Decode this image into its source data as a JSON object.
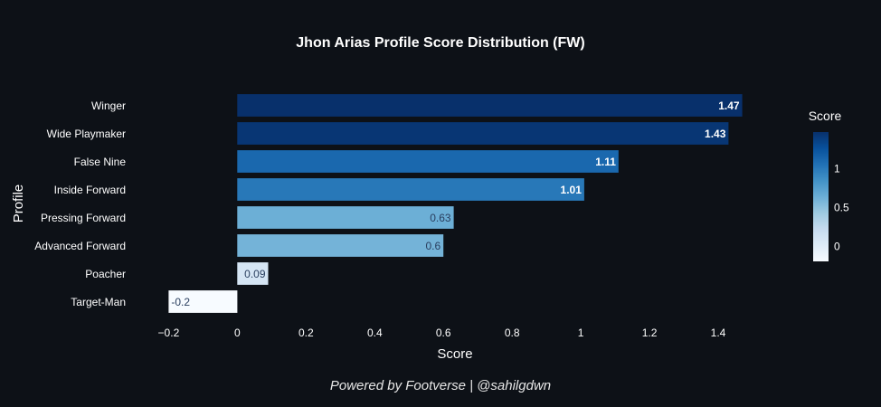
{
  "footer": "Powered by Footverse | @sahilgdwn",
  "colors": {
    "background": "#0d1117",
    "text": "#ffffff",
    "dark_label": "#2a3f5f",
    "colorscale": [
      "#f7fbff",
      "#deebf7",
      "#c6dbef",
      "#9ecae1",
      "#6baed6",
      "#4292c6",
      "#2171b5",
      "#08519c",
      "#08306b"
    ]
  },
  "chart_data": {
    "type": "bar",
    "orientation": "horizontal",
    "title": "Jhon Arias Profile Score Distribution (FW)",
    "xlabel": "Score",
    "ylabel": "Profile",
    "categories": [
      "Winger",
      "Wide Playmaker",
      "False Nine",
      "Inside Forward",
      "Pressing Forward",
      "Advanced Forward",
      "Poacher",
      "Target-Man"
    ],
    "values": [
      1.47,
      1.43,
      1.11,
      1.01,
      0.63,
      0.6,
      0.09,
      -0.2
    ],
    "data_labels": [
      "1.47",
      "1.43",
      "1.11",
      "1.01",
      "0.63",
      "0.6",
      "0.09",
      "-0.2"
    ],
    "xlim": [
      -0.23,
      1.5
    ],
    "xticks": [
      -0.2,
      0,
      0.2,
      0.4,
      0.6,
      0.8,
      1,
      1.2,
      1.4
    ],
    "xtick_labels": [
      "−0.2",
      "0",
      "0.2",
      "0.4",
      "0.6",
      "0.8",
      "1",
      "1.2",
      "1.4"
    ],
    "grid": false,
    "colorbar": {
      "title": "Score",
      "range": [
        -0.2,
        1.47
      ],
      "ticks": [
        0,
        0.5,
        1
      ],
      "tick_labels": [
        "0",
        "0.5",
        "1"
      ],
      "placement": "right"
    }
  }
}
